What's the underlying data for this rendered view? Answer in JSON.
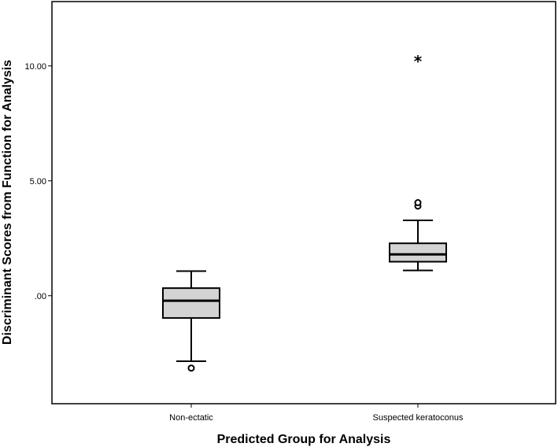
{
  "chart_data": {
    "type": "boxplot",
    "xlabel": "Predicted Group for Analysis",
    "ylabel": "Discriminant Scores from Function for Analysis",
    "ylim": [
      -4.7,
      12.8
    ],
    "yticks": [
      {
        "value": 0,
        "label": ".00"
      },
      {
        "value": 5,
        "label": "5.00"
      },
      {
        "value": 10,
        "label": "10.00"
      }
    ],
    "grid": false,
    "legend": "none",
    "box_color": "#d3d3d3",
    "categories": [
      "Non-ectatic",
      "Suspected keratoconus"
    ],
    "boxes": [
      {
        "category": "Non-ectatic",
        "whisker_low": -2.85,
        "q1": -0.97,
        "median": -0.22,
        "q3": 0.33,
        "whisker_high": 1.07,
        "outliers": [
          {
            "value": -3.15,
            "marker": "circle"
          }
        ]
      },
      {
        "category": "Suspected keratoconus",
        "whisker_low": 1.1,
        "q1": 1.48,
        "median": 1.8,
        "q3": 2.28,
        "whisker_high": 3.28,
        "outliers": [
          {
            "value": 3.9,
            "marker": "circle"
          },
          {
            "value": 4.05,
            "marker": "circle"
          },
          {
            "value": 10.3,
            "marker": "star"
          }
        ]
      }
    ]
  }
}
